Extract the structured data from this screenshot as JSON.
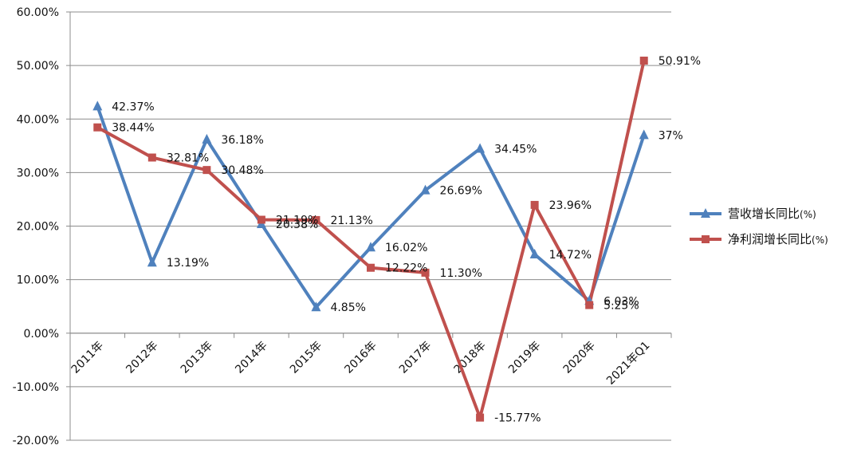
{
  "chart_data": {
    "type": "line",
    "title": "",
    "xlabel": "",
    "ylabel": "",
    "ylim": [
      -20,
      60
    ],
    "y_tick_step": 10,
    "y_tick_labels": [
      "60.00%",
      "50.00%",
      "40.00%",
      "30.00%",
      "20.00%",
      "10.00%",
      "0.00%",
      "-10.00%",
      "-20.00%"
    ],
    "grid": true,
    "legend_position": "right",
    "categories": [
      "2011年",
      "2012年",
      "2013年",
      "2014年",
      "2015年",
      "2016年",
      "2017年",
      "2018年",
      "2019年",
      "2020年",
      "2021年Q1"
    ],
    "series": [
      {
        "name": "营收增长同比",
        "name_suffix": "(%)",
        "color": "#4F81BD",
        "marker": "triangle",
        "values": [
          42.37,
          13.19,
          36.18,
          20.38,
          4.85,
          16.02,
          26.69,
          34.45,
          14.72,
          6.03,
          37
        ],
        "labels": [
          "42.37%",
          "13.19%",
          "36.18%",
          "20.38%",
          "4.85%",
          "16.02%",
          "26.69%",
          "34.45%",
          "14.72%",
          "6.03%",
          "37%"
        ]
      },
      {
        "name": "净利润增长同比",
        "name_suffix": "(%)",
        "color": "#C0504D",
        "marker": "square",
        "values": [
          38.44,
          32.81,
          30.48,
          21.19,
          21.13,
          12.22,
          11.3,
          -15.77,
          23.96,
          5.25,
          50.91
        ],
        "labels": [
          "38.44%",
          "32.81%",
          "30.48%",
          "21.19%",
          "21.13%",
          "12.22%",
          "11.30%",
          "-15.77%",
          "23.96%",
          "5.25%",
          "50.91%"
        ]
      }
    ]
  }
}
